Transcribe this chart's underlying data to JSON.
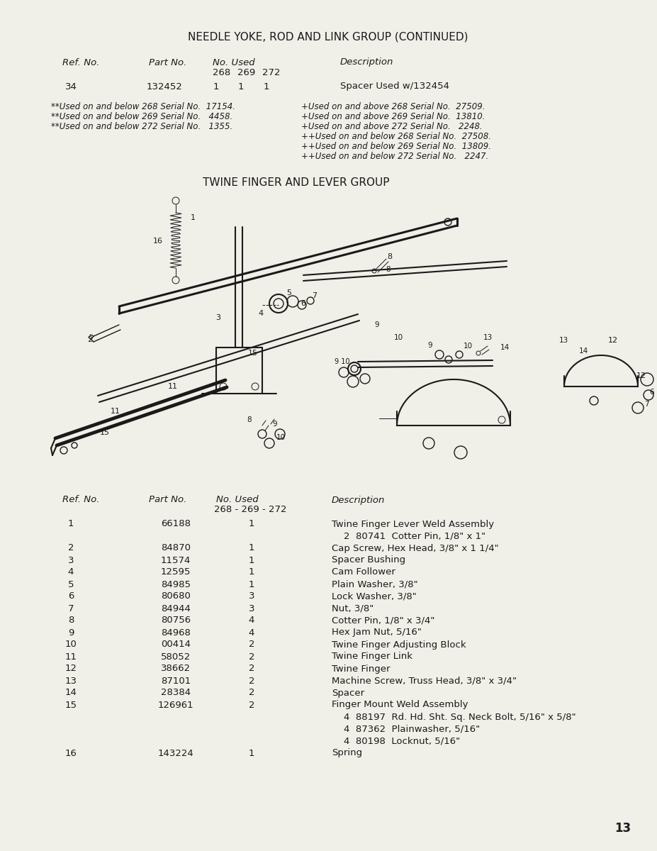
{
  "page_title": "NEEDLE YOKE, ROD AND LINK GROUP (CONTINUED)",
  "section2_title": "TWINE FINGER AND LEVER GROUP",
  "page_number": "13",
  "background_color": "#f0efe8",
  "notes_left": [
    "**Used on and below 268 Serial No.  17154.",
    "**Used on and below 269 Serial No.   4458.",
    "**Used on and below 272 Serial No.   1355."
  ],
  "notes_right": [
    "+Used on and above 268 Serial No.  27509.",
    "+Used on and above 269 Serial No.  13810.",
    "+Used on and above 272 Serial No.   2248.",
    "++Used on and below 268 Serial No.  27508.",
    "++Used on and below 269 Serial No.  13809.",
    "++Used on and below 272 Serial No.   2247."
  ],
  "table2_rows": [
    [
      "1",
      "66188",
      "1",
      "Twine Finger Lever Weld Assembly"
    ],
    [
      "",
      "",
      "",
      "    2  80741  Cotter Pin, 1/8\" x 1\""
    ],
    [
      "2",
      "84870",
      "1",
      "Cap Screw, Hex Head, 3/8\" x 1 1/4\""
    ],
    [
      "3",
      "11574",
      "1",
      "Spacer Bushing"
    ],
    [
      "4",
      "12595",
      "1",
      "Cam Follower"
    ],
    [
      "5",
      "84985",
      "1",
      "Plain Washer, 3/8\""
    ],
    [
      "6",
      "80680",
      "3",
      "Lock Washer, 3/8\""
    ],
    [
      "7",
      "84944",
      "3",
      "Nut, 3/8\""
    ],
    [
      "8",
      "80756",
      "4",
      "Cotter Pin, 1/8\" x 3/4\""
    ],
    [
      "9",
      "84968",
      "4",
      "Hex Jam Nut, 5/16\""
    ],
    [
      "10",
      "00414",
      "2",
      "Twine Finger Adjusting Block"
    ],
    [
      "11",
      "58052",
      "2",
      "Twine Finger Link"
    ],
    [
      "12",
      "38662",
      "2",
      "Twine Finger"
    ],
    [
      "13",
      "87101",
      "2",
      "Machine Screw, Truss Head, 3/8\" x 3/4\""
    ],
    [
      "14",
      "28384",
      "2",
      "Spacer"
    ],
    [
      "15",
      "126961",
      "2",
      "Finger Mount Weld Assembly"
    ],
    [
      "",
      "",
      "",
      "    4  88197  Rd. Hd. Sht. Sq. Neck Bolt, 5/16\" x 5/8\""
    ],
    [
      "",
      "",
      "",
      "    4  87362  Plainwasher, 5/16\""
    ],
    [
      "",
      "",
      "",
      "    4  80198  Locknut, 5/16\""
    ],
    [
      "16",
      "143224",
      "1",
      "Spring"
    ]
  ],
  "title_fontsize": 11,
  "header_fontsize": 9.5,
  "body_fontsize": 9.5,
  "note_fontsize": 8.5
}
